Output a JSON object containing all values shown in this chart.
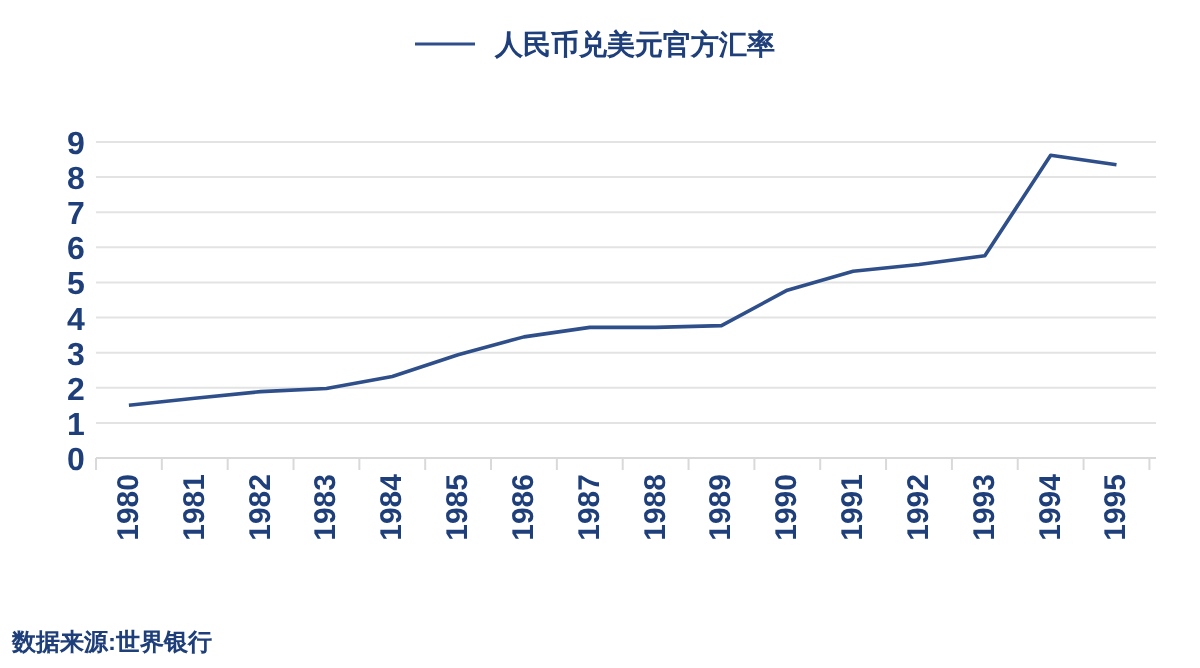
{
  "chart_data": {
    "type": "line",
    "categories": [
      "1980",
      "1981",
      "1982",
      "1983",
      "1984",
      "1985",
      "1986",
      "1987",
      "1988",
      "1989",
      "1990",
      "1991",
      "1992",
      "1993",
      "1994",
      "1995"
    ],
    "series": [
      {
        "name": "人民币兑美元官方汇率",
        "color": "#2f4f8a",
        "values": [
          1.5,
          1.7,
          1.89,
          1.98,
          2.32,
          2.94,
          3.45,
          3.72,
          3.72,
          3.77,
          4.78,
          5.32,
          5.51,
          5.76,
          8.62,
          8.35
        ]
      }
    ],
    "ylim": [
      0,
      9
    ],
    "yticks": [
      0,
      1,
      2,
      3,
      4,
      5,
      6,
      7,
      8,
      9
    ],
    "grid": "y",
    "legend": "top",
    "marker": "none",
    "line_style": "solid",
    "annotations": [
      "数据来源:世界银行"
    ]
  }
}
